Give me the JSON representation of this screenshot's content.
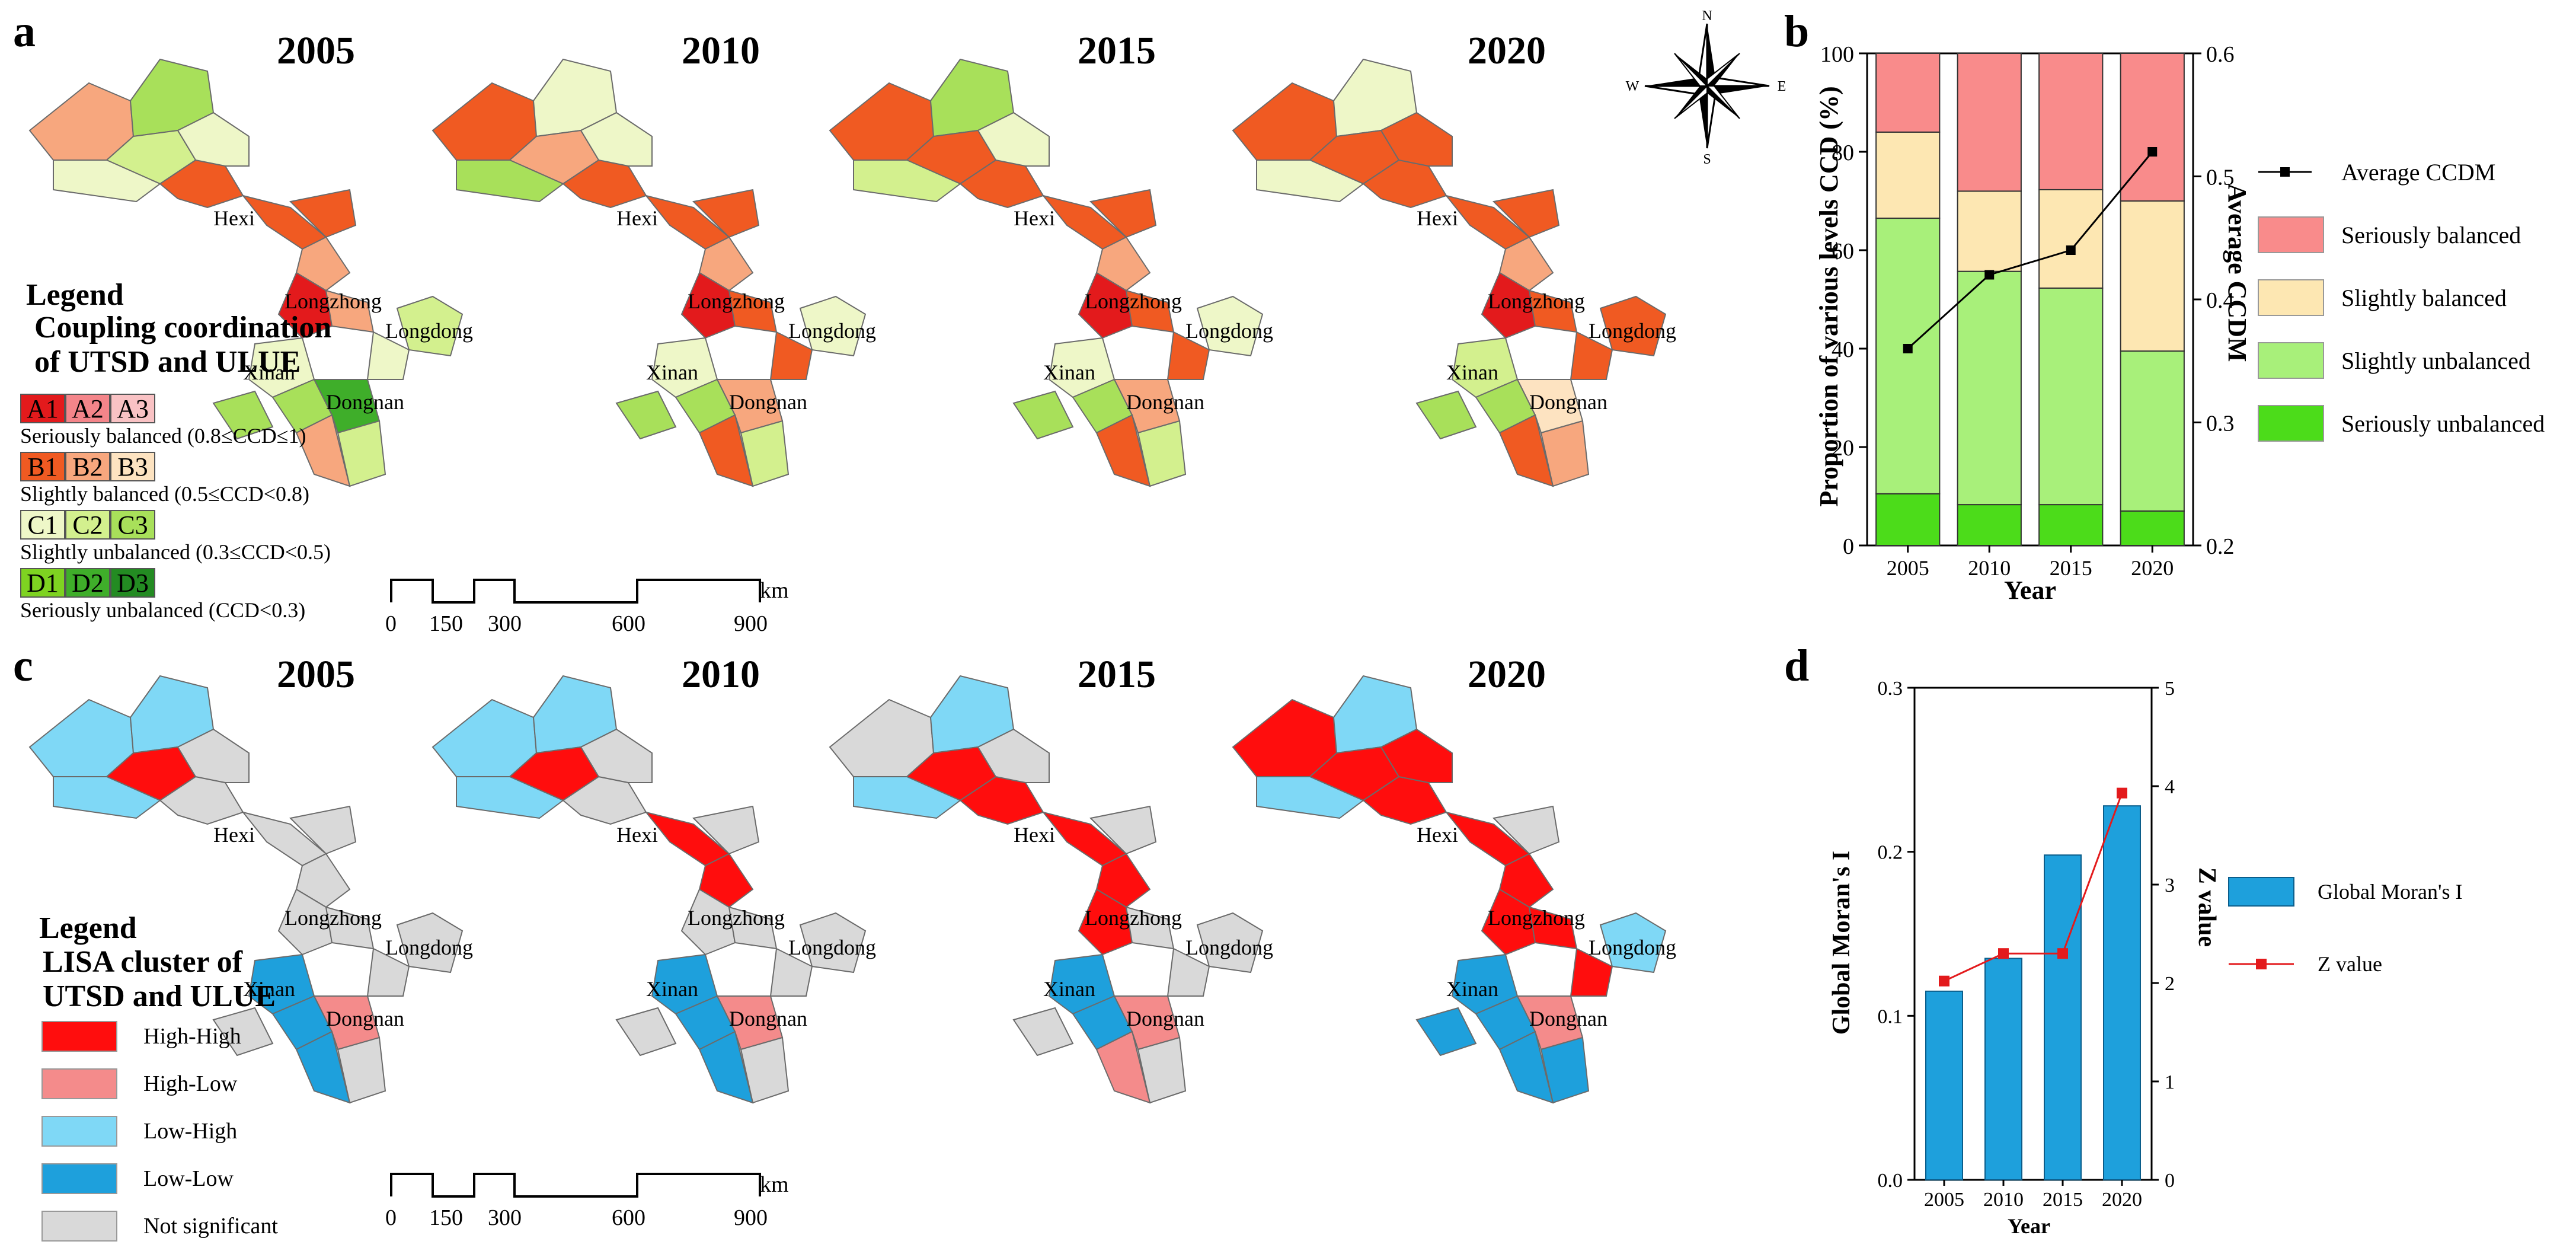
{
  "panel_a": {
    "letter": "a",
    "years": [
      "2005",
      "2010",
      "2015",
      "2020"
    ],
    "region_labels": [
      "Hexi",
      "Longzhong",
      "Longdong",
      "Xinan",
      "Dongnan"
    ],
    "legend": {
      "title": "Legend",
      "subtitle_line1": "Coupling coordination",
      "subtitle_line2": "of UTSD and ULUE",
      "groups": [
        {
          "codes": [
            "A1",
            "A2",
            "A3"
          ],
          "colors": [
            "#e31a1c",
            "#f4858a",
            "#f9c2c4"
          ],
          "label": "Seriously balanced (0.8≤CCD≤1)"
        },
        {
          "codes": [
            "B1",
            "B2",
            "B3"
          ],
          "colors": [
            "#f05a22",
            "#f7a77e",
            "#fde3c1"
          ],
          "label": "Slightly balanced (0.5≤CCD<0.8)"
        },
        {
          "codes": [
            "C1",
            "C2",
            "C3"
          ],
          "colors": [
            "#eef7c8",
            "#d3f08e",
            "#a8e05a"
          ],
          "label": "Slightly unbalanced (0.3≤CCD<0.5)"
        },
        {
          "codes": [
            "D1",
            "D2",
            "D3"
          ],
          "colors": [
            "#7ed321",
            "#3fae2a",
            "#238b22"
          ],
          "label": "Seriously unbalanced (CCD<0.3)"
        }
      ]
    },
    "scale": {
      "ticks": [
        "0",
        "150",
        "300",
        "600",
        "900"
      ],
      "unit": "km"
    },
    "compass": {
      "n": "N",
      "s": "S",
      "e": "E",
      "w": "W"
    }
  },
  "panel_b": {
    "letter": "b",
    "chart_data": {
      "type": "bar",
      "stacked": true,
      "categories": [
        "2005",
        "2010",
        "2015",
        "2020"
      ],
      "series": [
        {
          "name": "Seriously unbalanced",
          "color": "#4cdc1a",
          "values": [
            10.5,
            8.3,
            8.3,
            7.0
          ]
        },
        {
          "name": "Slightly unbalanced",
          "color": "#a8f07a",
          "values": [
            56.0,
            47.4,
            44.0,
            32.5
          ]
        },
        {
          "name": "Slightly balanced",
          "color": "#fde7b2",
          "values": [
            17.5,
            16.3,
            20.0,
            30.5
          ]
        },
        {
          "name": "Seriously balanced",
          "color": "#f98b8b",
          "values": [
            16.0,
            28.0,
            27.7,
            30.0
          ]
        }
      ],
      "line": {
        "name": "Average CCDM",
        "values": [
          0.36,
          0.42,
          0.44,
          0.52
        ]
      },
      "xlabel": "Year",
      "ylabel": "Proportion of various levels CCD (%)",
      "y2label": "Average CCDM",
      "ylim": [
        0,
        100
      ],
      "y2lim": [
        0.2,
        0.6
      ],
      "yticks": [
        "0",
        "20",
        "40",
        "60",
        "80",
        "100"
      ],
      "y2ticks": [
        "0.2",
        "0.3",
        "0.4",
        "0.5",
        "0.6"
      ]
    },
    "legend_items": [
      "Average CCDM",
      "Seriously balanced",
      "Slightly balanced",
      "Slightly unbalanced",
      "Seriously unbalanced"
    ]
  },
  "panel_c": {
    "letter": "c",
    "years": [
      "2005",
      "2010",
      "2015",
      "2020"
    ],
    "region_labels": [
      "Hexi",
      "Longzhong",
      "Longdong",
      "Xinan",
      "Dongnan"
    ],
    "legend": {
      "title": "Legend",
      "subtitle_line1": "LISA cluster of",
      "subtitle_line2": "UTSD and ULUE",
      "items": [
        {
          "label": "High-High",
          "color": "#ff0d0d"
        },
        {
          "label": "High-Low",
          "color": "#f48b8b"
        },
        {
          "label": "Low-High",
          "color": "#7fd8f6"
        },
        {
          "label": "Low-Low",
          "color": "#1ea0dc"
        },
        {
          "label": "Not significant",
          "color": "#d9d9d9"
        }
      ]
    },
    "scale": {
      "ticks": [
        "0",
        "150",
        "300",
        "600",
        "900"
      ],
      "unit": "km"
    }
  },
  "panel_d": {
    "letter": "d",
    "chart_data": {
      "type": "bar",
      "categories": [
        "2005",
        "2010",
        "2015",
        "2020"
      ],
      "series": [
        {
          "name": "Global Moran's I",
          "color": "#1ea0dc",
          "values": [
            0.115,
            0.135,
            0.198,
            0.228
          ]
        }
      ],
      "line": {
        "name": "Z value",
        "color": "#e31a1c",
        "values": [
          2.02,
          2.3,
          2.3,
          3.93
        ]
      },
      "xlabel": "Year",
      "ylabel": "Global Moran's I",
      "y2label": "Z value",
      "ylim": [
        0,
        0.3
      ],
      "y2lim": [
        0,
        5
      ],
      "yticks": [
        "0.0",
        "0.1",
        "0.2",
        "0.3"
      ],
      "y2ticks": [
        "0",
        "1",
        "2",
        "3",
        "4",
        "5"
      ]
    },
    "legend_items": [
      "Global Moran's I",
      "Z value"
    ]
  }
}
